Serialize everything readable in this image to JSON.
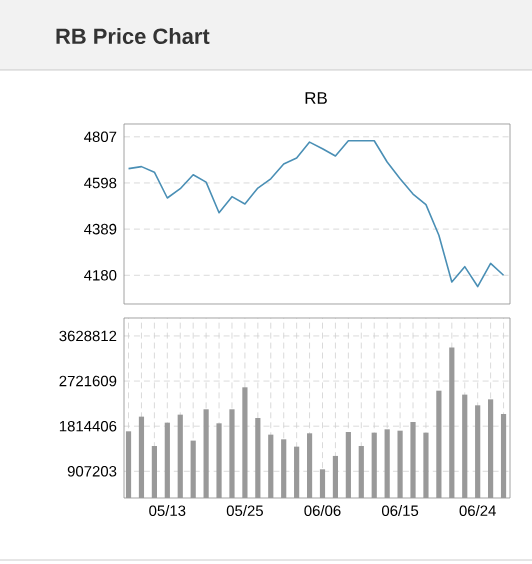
{
  "chart_data": [
    {
      "type": "line",
      "title": "RB Price Chart",
      "subtitle": "RB",
      "categories": [
        null,
        null,
        null,
        null,
        null,
        null,
        null,
        null,
        null,
        null,
        null,
        null,
        null,
        null,
        null,
        null,
        null,
        null,
        null,
        null,
        null,
        null,
        null,
        null,
        null,
        null,
        null,
        null,
        null,
        null
      ],
      "values": [
        4663,
        4672,
        4647,
        4530,
        4572,
        4635,
        4602,
        4463,
        4536,
        4503,
        4575,
        4617,
        4684,
        4711,
        4783,
        4753,
        4720,
        4789,
        4789,
        4789,
        4693,
        4617,
        4548,
        4500,
        4361,
        4150,
        4219,
        4129,
        4234,
        4180
      ],
      "color": "#4a8fb5",
      "ylim": [
        4050,
        4865
      ],
      "yticks": [
        4180,
        4389,
        4598,
        4807
      ],
      "grid": "y",
      "tick_labels": "y",
      "marker": "none"
    },
    {
      "type": "bar",
      "categories": [
        null,
        null,
        null,
        "05/13",
        null,
        null,
        null,
        null,
        null,
        "05/25",
        null,
        null,
        null,
        null,
        null,
        "06/06",
        null,
        null,
        null,
        null,
        null,
        "06/15",
        null,
        null,
        null,
        null,
        null,
        "06/24",
        null,
        null
      ],
      "values": [
        1711000,
        2006000,
        1416000,
        1885000,
        2046000,
        1524000,
        2154000,
        1872000,
        2154000,
        2596000,
        1979000,
        1644000,
        1550000,
        1403000,
        1671000,
        947000,
        1216000,
        1697000,
        1416000,
        1684000,
        1751000,
        1724000,
        1899000,
        1684000,
        2528000,
        3399000,
        2449000,
        2234000,
        2354000,
        2059000
      ],
      "color": "#999999",
      "ylim": [
        370000,
        3990000
      ],
      "yticks": [
        907203,
        1814406,
        2721609,
        3628812
      ],
      "grid": true
    }
  ]
}
